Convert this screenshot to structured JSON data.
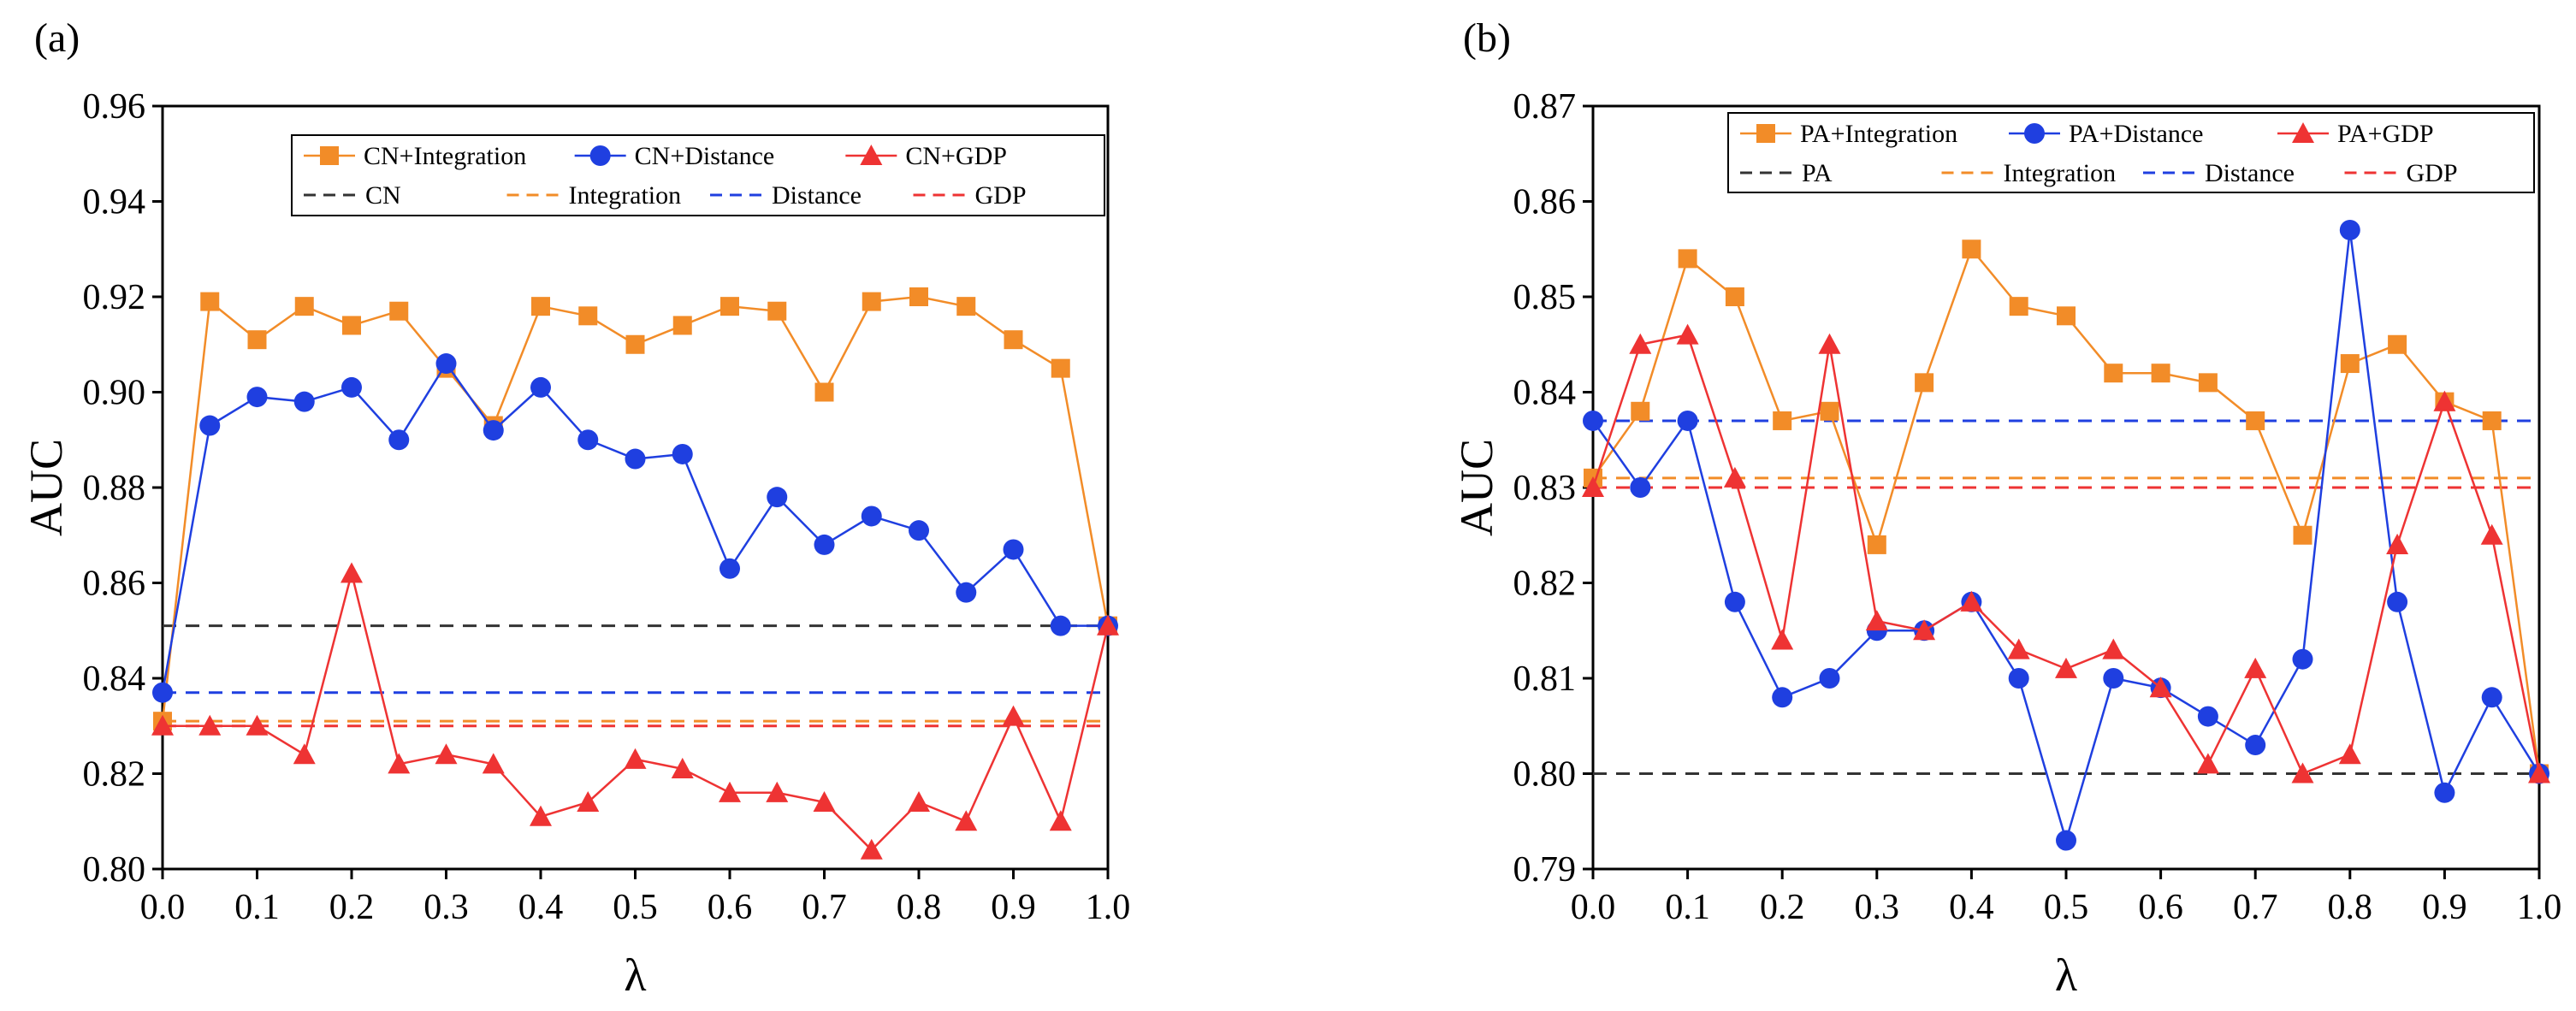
{
  "chart_data": [
    {
      "type": "line",
      "panel_label": "(a)",
      "xlabel": "λ",
      "ylabel": "AUC",
      "xlim": [
        0.0,
        1.0
      ],
      "ylim": [
        0.8,
        0.96
      ],
      "xticks": [
        0.0,
        0.1,
        0.2,
        0.3,
        0.4,
        0.5,
        0.6,
        0.7,
        0.8,
        0.9,
        1.0
      ],
      "xtick_labels": [
        "0.0",
        "0.1",
        "0.2",
        "0.3",
        "0.4",
        "0.5",
        "0.6",
        "0.7",
        "0.8",
        "0.9",
        "1.0"
      ],
      "yticks": [
        0.8,
        0.82,
        0.84,
        0.86,
        0.88,
        0.9,
        0.92,
        0.94,
        0.96
      ],
      "ytick_labels": [
        "0.80",
        "0.82",
        "0.84",
        "0.86",
        "0.88",
        "0.90",
        "0.92",
        "0.94",
        "0.96"
      ],
      "x": [
        0.0,
        0.05,
        0.1,
        0.15,
        0.2,
        0.25,
        0.3,
        0.35,
        0.4,
        0.45,
        0.5,
        0.55,
        0.6,
        0.65,
        0.7,
        0.75,
        0.8,
        0.85,
        0.9,
        0.95,
        1.0
      ],
      "legend_position": "top-right",
      "series": [
        {
          "name": "CN+Integration",
          "color": "#F28C28",
          "marker": "square",
          "values": [
            0.831,
            0.919,
            0.911,
            0.918,
            0.914,
            0.917,
            0.905,
            0.893,
            0.918,
            0.916,
            0.91,
            0.914,
            0.918,
            0.917,
            0.9,
            0.919,
            0.92,
            0.918,
            0.911,
            0.905,
            0.851
          ]
        },
        {
          "name": "CN+Distance",
          "color": "#1F3FE0",
          "marker": "circle",
          "values": [
            0.837,
            0.893,
            0.899,
            0.898,
            0.901,
            0.89,
            0.906,
            0.892,
            0.901,
            0.89,
            0.886,
            0.887,
            0.863,
            0.878,
            0.868,
            0.874,
            0.871,
            0.858,
            0.867,
            0.851,
            0.851
          ]
        },
        {
          "name": "CN+GDP",
          "color": "#EE3333",
          "marker": "triangle",
          "values": [
            0.83,
            0.83,
            0.83,
            0.824,
            0.862,
            0.822,
            0.824,
            0.822,
            0.811,
            0.814,
            0.823,
            0.821,
            0.816,
            0.816,
            0.814,
            0.804,
            0.814,
            0.81,
            0.832,
            0.81,
            0.851
          ]
        }
      ],
      "baselines": [
        {
          "name": "CN",
          "color": "#333333",
          "value": 0.851
        },
        {
          "name": "Integration",
          "color": "#F28C28",
          "value": 0.831
        },
        {
          "name": "Distance",
          "color": "#1F3FE0",
          "value": 0.837
        },
        {
          "name": "GDP",
          "color": "#EE3333",
          "value": 0.83
        }
      ]
    },
    {
      "type": "line",
      "panel_label": "(b)",
      "xlabel": "λ",
      "ylabel": "AUC",
      "xlim": [
        0.0,
        1.0
      ],
      "ylim": [
        0.79,
        0.87
      ],
      "xticks": [
        0.0,
        0.1,
        0.2,
        0.3,
        0.4,
        0.5,
        0.6,
        0.7,
        0.8,
        0.9,
        1.0
      ],
      "xtick_labels": [
        "0.0",
        "0.1",
        "0.2",
        "0.3",
        "0.4",
        "0.5",
        "0.6",
        "0.7",
        "0.8",
        "0.9",
        "1.0"
      ],
      "yticks": [
        0.79,
        0.8,
        0.81,
        0.82,
        0.83,
        0.84,
        0.85,
        0.86,
        0.87
      ],
      "ytick_labels": [
        "0.79",
        "0.80",
        "0.81",
        "0.82",
        "0.83",
        "0.84",
        "0.85",
        "0.86",
        "0.87"
      ],
      "x": [
        0.0,
        0.05,
        0.1,
        0.15,
        0.2,
        0.25,
        0.3,
        0.35,
        0.4,
        0.45,
        0.5,
        0.55,
        0.6,
        0.65,
        0.7,
        0.75,
        0.8,
        0.85,
        0.9,
        0.95,
        1.0
      ],
      "legend_position": "top-right",
      "series": [
        {
          "name": "PA+Integration",
          "color": "#F28C28",
          "marker": "square",
          "values": [
            0.831,
            0.838,
            0.854,
            0.85,
            0.837,
            0.838,
            0.824,
            0.841,
            0.855,
            0.849,
            0.848,
            0.842,
            0.842,
            0.841,
            0.837,
            0.825,
            0.843,
            0.845,
            0.839,
            0.837,
            0.8
          ]
        },
        {
          "name": "PA+Distance",
          "color": "#1F3FE0",
          "marker": "circle",
          "values": [
            0.837,
            0.83,
            0.837,
            0.818,
            0.808,
            0.81,
            0.815,
            0.815,
            0.818,
            0.81,
            0.793,
            0.81,
            0.809,
            0.806,
            0.803,
            0.812,
            0.857,
            0.818,
            0.798,
            0.808,
            0.8
          ]
        },
        {
          "name": "PA+GDP",
          "color": "#EE3333",
          "marker": "triangle",
          "values": [
            0.83,
            0.845,
            0.846,
            0.831,
            0.814,
            0.845,
            0.816,
            0.815,
            0.818,
            0.813,
            0.811,
            0.813,
            0.809,
            0.801,
            0.811,
            0.8,
            0.802,
            0.824,
            0.839,
            0.825,
            0.8
          ]
        }
      ],
      "baselines": [
        {
          "name": "PA",
          "color": "#333333",
          "value": 0.8
        },
        {
          "name": "Integration",
          "color": "#F28C28",
          "value": 0.831
        },
        {
          "name": "Distance",
          "color": "#1F3FE0",
          "value": 0.837
        },
        {
          "name": "GDP",
          "color": "#EE3333",
          "value": 0.83
        }
      ]
    }
  ]
}
